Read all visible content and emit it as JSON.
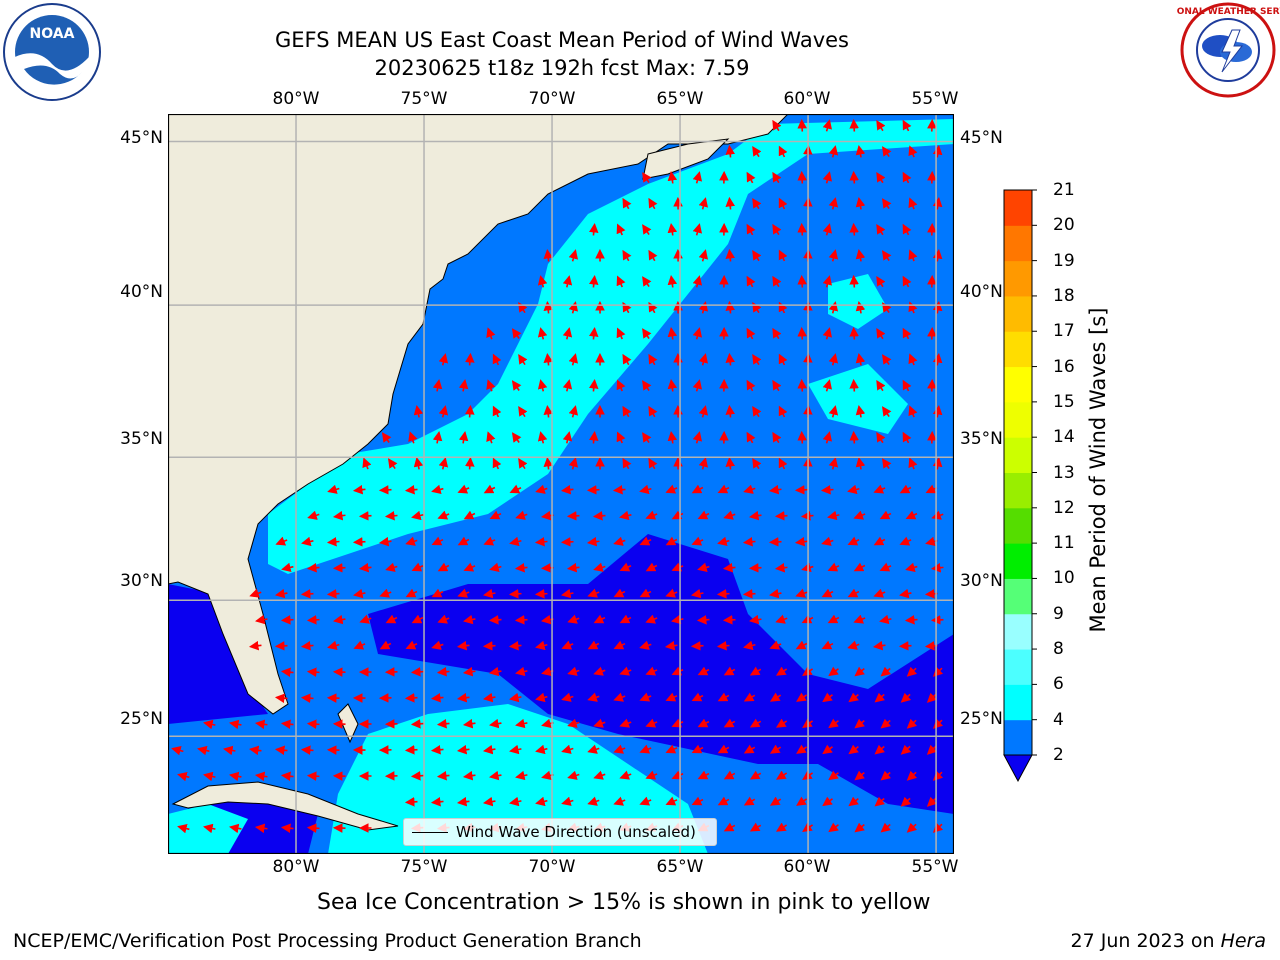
{
  "title": {
    "line1": "GEFS MEAN US East Coast Mean Period of Wind Waves",
    "line2": "20230625 t18z 192h fcst   Max: 7.59"
  },
  "logos": {
    "left_text": "NOAA",
    "right_text": "NATIONAL WEATHER SERVICE"
  },
  "map": {
    "lon_labels": [
      "80°W",
      "75°W",
      "70°W",
      "65°W",
      "60°W",
      "55°W"
    ],
    "lat_labels": [
      "45°N",
      "40°N",
      "35°N",
      "30°N",
      "25°N"
    ],
    "extent": {
      "lon": [
        -85,
        -54.3
      ],
      "lat": [
        20.5,
        45.8
      ]
    },
    "colors": {
      "land": "#efecdc",
      "sea_le2": "#0a00f0",
      "sea_2_4": "#0078ff",
      "sea_4_6": "#00ffff",
      "arrows": "#ff0000",
      "grid": "#b3b3b3"
    }
  },
  "colorbar": {
    "title": "Mean Period of Wind Waves [s]",
    "ticks": [
      "2",
      "4",
      "6",
      "8",
      "9",
      "10",
      "11",
      "12",
      "13",
      "14",
      "15",
      "16",
      "17",
      "18",
      "19",
      "20",
      "21"
    ],
    "colors": [
      "#0078ff",
      "#00ffff",
      "#4cffff",
      "#99ffff",
      "#55ff77",
      "#00ee00",
      "#55dd00",
      "#99ee00",
      "#ccff00",
      "#eeff00",
      "#ffff00",
      "#ffdd00",
      "#ffbb00",
      "#ff9900",
      "#ff7700",
      "#ff4400",
      "#ff0000"
    ],
    "extend_color": "#0a00f0"
  },
  "legend": {
    "label": "Wind Wave Direction (unscaled)"
  },
  "note": "Sea Ice Concentration > 15% is shown in pink to yellow",
  "footer": {
    "left": "NCEP/EMC/Verification Post Processing Product Generation Branch",
    "right_date": "27 Jun 2023 on ",
    "right_host": "Hera"
  }
}
